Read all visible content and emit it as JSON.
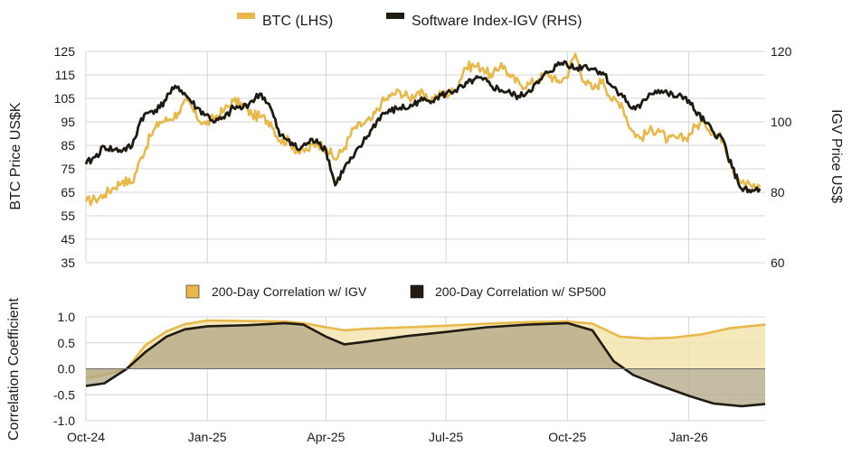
{
  "chart_data": [
    {
      "type": "line",
      "legend": {
        "placement": "top-center"
      },
      "ylabel": "BTC Price US$K",
      "y2label": "IGV Price US$",
      "ylim": [
        35,
        125
      ],
      "y2lim": [
        60,
        120
      ],
      "yticks": [
        35,
        45,
        55,
        65,
        75,
        85,
        95,
        105,
        115,
        125
      ],
      "y2ticks": [
        60,
        80,
        100,
        120
      ],
      "grid": true,
      "x_range": [
        "2024-10-01",
        "2026-02-28"
      ],
      "series": [
        {
          "name": "BTC (LHS)",
          "axis": "left",
          "color": "#E8B94A",
          "points": [
            [
              "2024-10-01",
              61
            ],
            [
              "2024-10-08",
              62
            ],
            [
              "2024-10-15",
              64
            ],
            [
              "2024-10-22",
              67
            ],
            [
              "2024-10-29",
              70
            ],
            [
              "2024-11-05",
              69
            ],
            [
              "2024-11-12",
              80
            ],
            [
              "2024-11-19",
              89
            ],
            [
              "2024-11-26",
              95
            ],
            [
              "2024-12-03",
              96
            ],
            [
              "2024-12-10",
              99
            ],
            [
              "2024-12-17",
              104
            ],
            [
              "2024-12-24",
              97
            ],
            [
              "2024-12-31",
              94
            ],
            [
              "2025-01-07",
              97
            ],
            [
              "2025-01-14",
              100
            ],
            [
              "2025-01-21",
              104
            ],
            [
              "2025-01-28",
              102
            ],
            [
              "2025-02-04",
              98
            ],
            [
              "2025-02-11",
              97
            ],
            [
              "2025-02-18",
              95
            ],
            [
              "2025-02-25",
              87
            ],
            [
              "2025-03-04",
              87
            ],
            [
              "2025-03-11",
              82
            ],
            [
              "2025-03-18",
              83
            ],
            [
              "2025-03-25",
              86
            ],
            [
              "2025-04-01",
              84
            ],
            [
              "2025-04-08",
              79
            ],
            [
              "2025-04-15",
              84
            ],
            [
              "2025-04-22",
              92
            ],
            [
              "2025-04-29",
              94
            ],
            [
              "2025-05-06",
              96
            ],
            [
              "2025-05-13",
              103
            ],
            [
              "2025-05-20",
              106
            ],
            [
              "2025-05-27",
              108
            ],
            [
              "2025-06-03",
              105
            ],
            [
              "2025-06-10",
              108
            ],
            [
              "2025-06-17",
              104
            ],
            [
              "2025-06-24",
              106
            ],
            [
              "2025-07-01",
              107
            ],
            [
              "2025-07-08",
              108
            ],
            [
              "2025-07-15",
              118
            ],
            [
              "2025-07-22",
              119
            ],
            [
              "2025-07-29",
              118
            ],
            [
              "2025-08-05",
              114
            ],
            [
              "2025-08-12",
              120
            ],
            [
              "2025-08-19",
              114
            ],
            [
              "2025-08-26",
              111
            ],
            [
              "2025-09-02",
              111
            ],
            [
              "2025-09-09",
              113
            ],
            [
              "2025-09-16",
              116
            ],
            [
              "2025-09-23",
              112
            ],
            [
              "2025-09-30",
              114
            ],
            [
              "2025-10-07",
              124
            ],
            [
              "2025-10-14",
              112
            ],
            [
              "2025-10-21",
              109
            ],
            [
              "2025-10-28",
              113
            ],
            [
              "2025-11-04",
              104
            ],
            [
              "2025-11-11",
              103
            ],
            [
              "2025-11-18",
              92
            ],
            [
              "2025-11-25",
              88
            ],
            [
              "2025-12-02",
              91
            ],
            [
              "2025-12-09",
              92
            ],
            [
              "2025-12-16",
              87
            ],
            [
              "2025-12-23",
              88
            ],
            [
              "2025-12-30",
              88
            ],
            [
              "2026-01-06",
              93
            ],
            [
              "2026-01-13",
              95
            ],
            [
              "2026-01-20",
              90
            ],
            [
              "2026-01-27",
              88
            ],
            [
              "2026-02-03",
              76
            ],
            [
              "2026-02-10",
              69
            ],
            [
              "2026-02-17",
              68
            ],
            [
              "2026-02-24",
              67
            ]
          ]
        },
        {
          "name": "Software Index-IGV (RHS)",
          "axis": "right",
          "color": "#1F1B12",
          "points": [
            [
              "2024-10-01",
              88
            ],
            [
              "2024-10-08",
              90
            ],
            [
              "2024-10-15",
              93
            ],
            [
              "2024-10-22",
              92
            ],
            [
              "2024-10-29",
              92
            ],
            [
              "2024-11-05",
              93
            ],
            [
              "2024-11-12",
              101
            ],
            [
              "2024-11-19",
              103
            ],
            [
              "2024-11-26",
              104
            ],
            [
              "2024-12-03",
              108
            ],
            [
              "2024-12-10",
              110
            ],
            [
              "2024-12-17",
              107
            ],
            [
              "2024-12-24",
              104
            ],
            [
              "2024-12-31",
              102
            ],
            [
              "2025-01-07",
              100
            ],
            [
              "2025-01-14",
              101
            ],
            [
              "2025-01-21",
              104
            ],
            [
              "2025-01-28",
              104
            ],
            [
              "2025-02-04",
              106
            ],
            [
              "2025-02-11",
              108
            ],
            [
              "2025-02-18",
              104
            ],
            [
              "2025-02-25",
              96
            ],
            [
              "2025-03-04",
              95
            ],
            [
              "2025-03-11",
              92
            ],
            [
              "2025-03-18",
              94
            ],
            [
              "2025-03-25",
              95
            ],
            [
              "2025-04-01",
              92
            ],
            [
              "2025-04-08",
              82
            ],
            [
              "2025-04-15",
              87
            ],
            [
              "2025-04-22",
              90
            ],
            [
              "2025-04-29",
              94
            ],
            [
              "2025-05-06",
              98
            ],
            [
              "2025-05-13",
              102
            ],
            [
              "2025-05-20",
              103
            ],
            [
              "2025-05-27",
              104
            ],
            [
              "2025-06-03",
              104
            ],
            [
              "2025-06-10",
              106
            ],
            [
              "2025-06-17",
              106
            ],
            [
              "2025-06-24",
              107
            ],
            [
              "2025-07-01",
              108
            ],
            [
              "2025-07-08",
              109
            ],
            [
              "2025-07-15",
              110
            ],
            [
              "2025-07-22",
              112
            ],
            [
              "2025-07-29",
              112
            ],
            [
              "2025-08-05",
              110
            ],
            [
              "2025-08-12",
              109
            ],
            [
              "2025-08-19",
              108
            ],
            [
              "2025-08-26",
              107
            ],
            [
              "2025-09-02",
              109
            ],
            [
              "2025-09-09",
              111
            ],
            [
              "2025-09-16",
              114
            ],
            [
              "2025-09-23",
              116
            ],
            [
              "2025-09-30",
              117
            ],
            [
              "2025-10-07",
              115
            ],
            [
              "2025-10-14",
              116
            ],
            [
              "2025-10-21",
              115
            ],
            [
              "2025-10-28",
              114
            ],
            [
              "2025-11-04",
              110
            ],
            [
              "2025-11-11",
              108
            ],
            [
              "2025-11-18",
              104
            ],
            [
              "2025-11-25",
              104
            ],
            [
              "2025-12-02",
              108
            ],
            [
              "2025-12-09",
              109
            ],
            [
              "2025-12-16",
              108
            ],
            [
              "2025-12-23",
              107
            ],
            [
              "2025-12-30",
              107
            ],
            [
              "2026-01-06",
              103
            ],
            [
              "2026-01-13",
              100
            ],
            [
              "2026-01-20",
              97
            ],
            [
              "2026-01-27",
              95
            ],
            [
              "2026-02-03",
              87
            ],
            [
              "2026-02-10",
              81
            ],
            [
              "2026-02-17",
              80
            ],
            [
              "2026-02-24",
              81
            ]
          ]
        }
      ]
    },
    {
      "type": "area",
      "legend": {
        "placement": "top-center"
      },
      "ylabel": "Correlation Coefficient",
      "ylim": [
        -1.0,
        1.0
      ],
      "yticks": [
        "1.0",
        "0.5",
        "0.0",
        "-0.5",
        "-1.0"
      ],
      "grid": true,
      "x_range": [
        "2024-10-01",
        "2026-02-28"
      ],
      "xticks": [
        {
          "date": "2024-10-01",
          "label": "Oct-24"
        },
        {
          "date": "2025-01-01",
          "label": "Jan-25"
        },
        {
          "date": "2025-04-01",
          "label": "Apr-25"
        },
        {
          "date": "2025-07-01",
          "label": "Jul-25"
        },
        {
          "date": "2025-10-01",
          "label": "Oct-25"
        },
        {
          "date": "2026-01-01",
          "label": "Jan-26"
        }
      ],
      "series": [
        {
          "name": "200-Day Correlation w/ IGV",
          "color": "#E8B94A",
          "fill": "#F3E5B0",
          "points": [
            [
              "2024-10-01",
              -0.18
            ],
            [
              "2024-10-15",
              -0.12
            ],
            [
              "2024-11-01",
              0.0
            ],
            [
              "2024-11-15",
              0.45
            ],
            [
              "2024-12-01",
              0.72
            ],
            [
              "2024-12-15",
              0.86
            ],
            [
              "2025-01-01",
              0.93
            ],
            [
              "2025-02-01",
              0.92
            ],
            [
              "2025-03-01",
              0.91
            ],
            [
              "2025-03-15",
              0.88
            ],
            [
              "2025-04-01",
              0.8
            ],
            [
              "2025-04-15",
              0.74
            ],
            [
              "2025-05-01",
              0.77
            ],
            [
              "2025-06-01",
              0.8
            ],
            [
              "2025-07-01",
              0.83
            ],
            [
              "2025-08-01",
              0.87
            ],
            [
              "2025-09-01",
              0.9
            ],
            [
              "2025-10-01",
              0.91
            ],
            [
              "2025-10-20",
              0.87
            ],
            [
              "2025-11-10",
              0.62
            ],
            [
              "2025-12-01",
              0.58
            ],
            [
              "2025-12-20",
              0.6
            ],
            [
              "2026-01-10",
              0.66
            ],
            [
              "2026-02-01",
              0.78
            ],
            [
              "2026-02-28",
              0.85
            ]
          ]
        },
        {
          "name": "200-Day Correlation w/ SP500",
          "color": "#1F1B12",
          "fill": "#B0A584",
          "points": [
            [
              "2024-10-01",
              -0.33
            ],
            [
              "2024-10-15",
              -0.28
            ],
            [
              "2024-11-01",
              0.0
            ],
            [
              "2024-11-15",
              0.32
            ],
            [
              "2024-12-01",
              0.62
            ],
            [
              "2024-12-15",
              0.76
            ],
            [
              "2025-01-01",
              0.82
            ],
            [
              "2025-02-01",
              0.84
            ],
            [
              "2025-03-01",
              0.88
            ],
            [
              "2025-03-15",
              0.85
            ],
            [
              "2025-04-01",
              0.62
            ],
            [
              "2025-04-15",
              0.47
            ],
            [
              "2025-05-01",
              0.52
            ],
            [
              "2025-06-01",
              0.63
            ],
            [
              "2025-07-01",
              0.71
            ],
            [
              "2025-08-01",
              0.8
            ],
            [
              "2025-09-01",
              0.85
            ],
            [
              "2025-10-01",
              0.88
            ],
            [
              "2025-10-20",
              0.74
            ],
            [
              "2025-11-05",
              0.15
            ],
            [
              "2025-11-20",
              -0.12
            ],
            [
              "2025-12-10",
              -0.32
            ],
            [
              "2026-01-01",
              -0.52
            ],
            [
              "2026-01-20",
              -0.67
            ],
            [
              "2026-02-10",
              -0.72
            ],
            [
              "2026-02-28",
              -0.68
            ]
          ]
        }
      ]
    }
  ]
}
